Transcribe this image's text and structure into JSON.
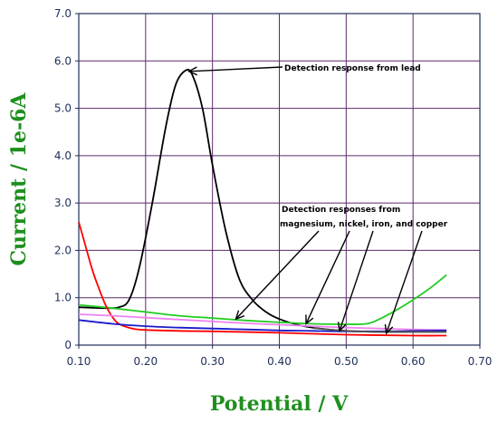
{
  "chart_data": {
    "type": "line",
    "xlabel": "Potential / V",
    "ylabel": "Current / 1e-6A",
    "xlim": [
      0.1,
      0.7
    ],
    "ylim": [
      0,
      7.0
    ],
    "x_ticks": [
      "0.10",
      "0.20",
      "0.30",
      "0.40",
      "0.50",
      "0.60",
      "0.70"
    ],
    "y_ticks": [
      "0",
      "1.0",
      "2.0",
      "3.0",
      "4.0",
      "5.0",
      "6.0",
      "7.0"
    ],
    "grid": true,
    "series": [
      {
        "color": "#000000",
        "points": [
          [
            0.1,
            0.8
          ],
          [
            0.14,
            0.78
          ],
          [
            0.16,
            0.8
          ],
          [
            0.175,
            0.95
          ],
          [
            0.19,
            1.6
          ],
          [
            0.21,
            3.0
          ],
          [
            0.23,
            4.6
          ],
          [
            0.245,
            5.5
          ],
          [
            0.26,
            5.8
          ],
          [
            0.27,
            5.7
          ],
          [
            0.285,
            5.0
          ],
          [
            0.3,
            3.8
          ],
          [
            0.32,
            2.4
          ],
          [
            0.34,
            1.4
          ],
          [
            0.36,
            0.95
          ],
          [
            0.38,
            0.7
          ],
          [
            0.4,
            0.55
          ],
          [
            0.43,
            0.42
          ],
          [
            0.46,
            0.35
          ],
          [
            0.5,
            0.3
          ],
          [
            0.55,
            0.28
          ],
          [
            0.6,
            0.28
          ],
          [
            0.65,
            0.28
          ]
        ]
      },
      {
        "color": "#22cc22",
        "points": [
          [
            0.1,
            0.85
          ],
          [
            0.15,
            0.78
          ],
          [
            0.2,
            0.7
          ],
          [
            0.25,
            0.62
          ],
          [
            0.3,
            0.57
          ],
          [
            0.35,
            0.52
          ],
          [
            0.4,
            0.48
          ],
          [
            0.45,
            0.45
          ],
          [
            0.5,
            0.44
          ],
          [
            0.53,
            0.45
          ],
          [
            0.55,
            0.55
          ],
          [
            0.58,
            0.78
          ],
          [
            0.61,
            1.05
          ],
          [
            0.63,
            1.25
          ],
          [
            0.65,
            1.48
          ]
        ]
      },
      {
        "color": "#ff0000",
        "points": [
          [
            0.1,
            2.6
          ],
          [
            0.11,
            2.1
          ],
          [
            0.12,
            1.6
          ],
          [
            0.13,
            1.2
          ],
          [
            0.14,
            0.85
          ],
          [
            0.15,
            0.6
          ],
          [
            0.16,
            0.45
          ],
          [
            0.18,
            0.35
          ],
          [
            0.2,
            0.32
          ],
          [
            0.25,
            0.3
          ],
          [
            0.3,
            0.29
          ],
          [
            0.4,
            0.26
          ],
          [
            0.5,
            0.22
          ],
          [
            0.6,
            0.2
          ],
          [
            0.65,
            0.2
          ]
        ]
      },
      {
        "color": "#ee82ee",
        "points": [
          [
            0.1,
            0.65
          ],
          [
            0.15,
            0.62
          ],
          [
            0.2,
            0.58
          ],
          [
            0.25,
            0.54
          ],
          [
            0.3,
            0.5
          ],
          [
            0.35,
            0.46
          ],
          [
            0.4,
            0.43
          ],
          [
            0.45,
            0.4
          ],
          [
            0.5,
            0.37
          ],
          [
            0.55,
            0.35
          ],
          [
            0.6,
            0.33
          ],
          [
            0.65,
            0.32
          ]
        ]
      },
      {
        "color": "#1a1acc",
        "points": [
          [
            0.1,
            0.53
          ],
          [
            0.15,
            0.45
          ],
          [
            0.2,
            0.4
          ],
          [
            0.25,
            0.37
          ],
          [
            0.3,
            0.35
          ],
          [
            0.35,
            0.33
          ],
          [
            0.4,
            0.31
          ],
          [
            0.45,
            0.3
          ],
          [
            0.5,
            0.29
          ],
          [
            0.55,
            0.29
          ],
          [
            0.6,
            0.3
          ],
          [
            0.65,
            0.31
          ]
        ]
      },
      {
        "color": "#555555",
        "points": [
          [
            0.45,
            0.36
          ],
          [
            0.5,
            0.3
          ],
          [
            0.55,
            0.28
          ],
          [
            0.6,
            0.28
          ],
          [
            0.65,
            0.28
          ]
        ]
      }
    ],
    "annotations": [
      {
        "text": "Detection response from lead",
        "arrows_to": [
          [
            0.262,
            5.78
          ]
        ]
      },
      {
        "text": "Detection responses from",
        "text2": "magnesium, nickel, iron, and copper",
        "arrows_to": [
          [
            0.335,
            0.55
          ],
          [
            0.44,
            0.45
          ],
          [
            0.49,
            0.3
          ],
          [
            0.56,
            0.25
          ]
        ]
      }
    ]
  }
}
